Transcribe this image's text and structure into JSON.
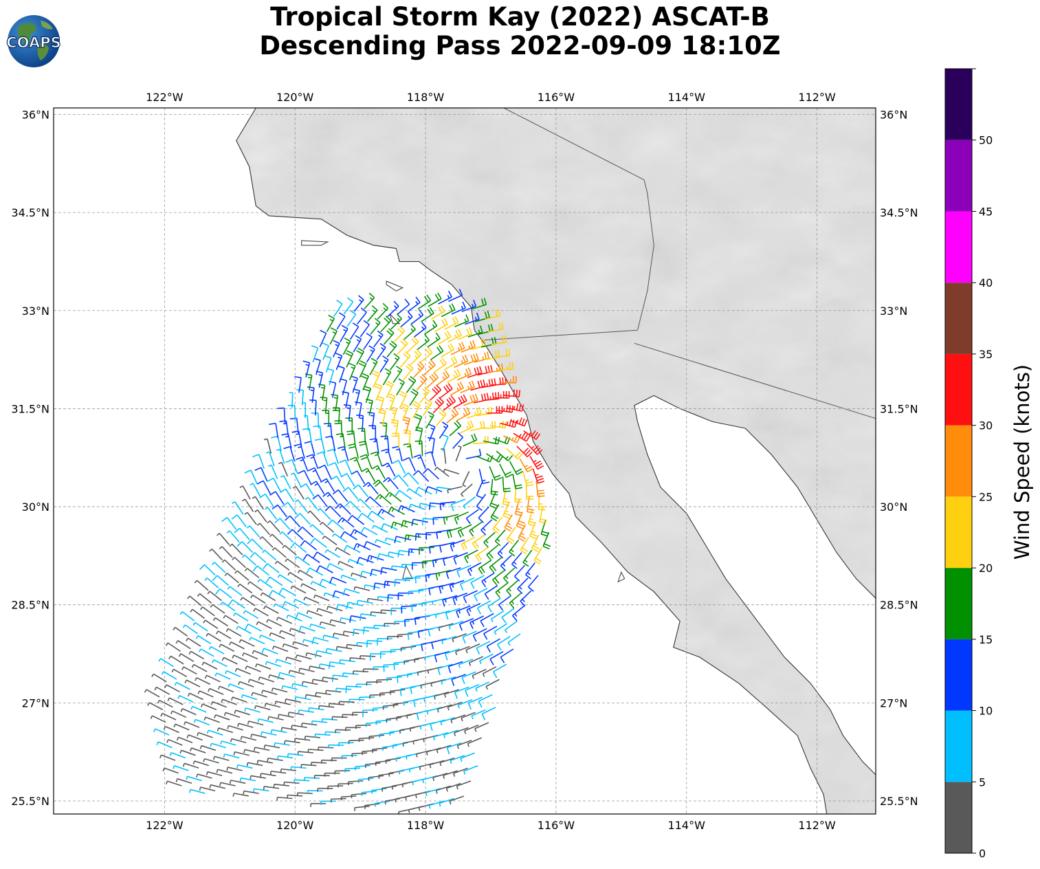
{
  "title": {
    "line1": "Tropical Storm Kay (2022) ASCAT-B",
    "line2": "Descending Pass 2022-09-09 18:10Z"
  },
  "logo": {
    "text": "COAPS",
    "icon": "globe-logo"
  },
  "map": {
    "projection": "plate-carree",
    "lon_range": [
      -123.7,
      -111.1
    ],
    "lat_range": [
      25.3,
      36.1
    ],
    "lon_ticks": [
      -122,
      -120,
      -118,
      -116,
      -114,
      -112
    ],
    "lon_tick_labels": [
      "122°W",
      "120°W",
      "118°W",
      "116°W",
      "114°W",
      "112°W"
    ],
    "lat_ticks": [
      25.5,
      27,
      28.5,
      30,
      31.5,
      33,
      34.5,
      36
    ],
    "lat_tick_labels": [
      "25.5°N",
      "27°N",
      "28.5°N",
      "30°N",
      "31.5°N",
      "33°N",
      "34.5°N",
      "36°N"
    ],
    "gridlines": true,
    "background": "grayscale-topography",
    "features": [
      "coastline",
      "international-border",
      "state-border"
    ]
  },
  "wind_field": {
    "storm_center": {
      "lon": -117.4,
      "lat": 30.6
    },
    "swath": {
      "corners": [
        [
          -122.8,
          25.7
        ],
        [
          -119.5,
          33.0
        ],
        [
          -117.2,
          33.2
        ],
        [
          -116.0,
          29.8
        ],
        [
          -117.4,
          25.3
        ]
      ]
    },
    "max_wind_knots": 34,
    "symbol": "wind-barb"
  },
  "colorbar": {
    "label": "Wind Speed (knots)",
    "bounds": [
      0,
      5,
      10,
      15,
      20,
      25,
      30,
      35,
      40,
      45,
      50,
      55
    ],
    "tick_labels": [
      "0",
      "5",
      "10",
      "15",
      "20",
      "25",
      "30",
      "35",
      "40",
      "45",
      "50"
    ],
    "colors": [
      "#595959",
      "#00bfff",
      "#0038ff",
      "#009000",
      "#ffd010",
      "#ff8c0a",
      "#ff1010",
      "#7f3c2a",
      "#ff00ff",
      "#8b00b8",
      "#2b005c"
    ]
  }
}
